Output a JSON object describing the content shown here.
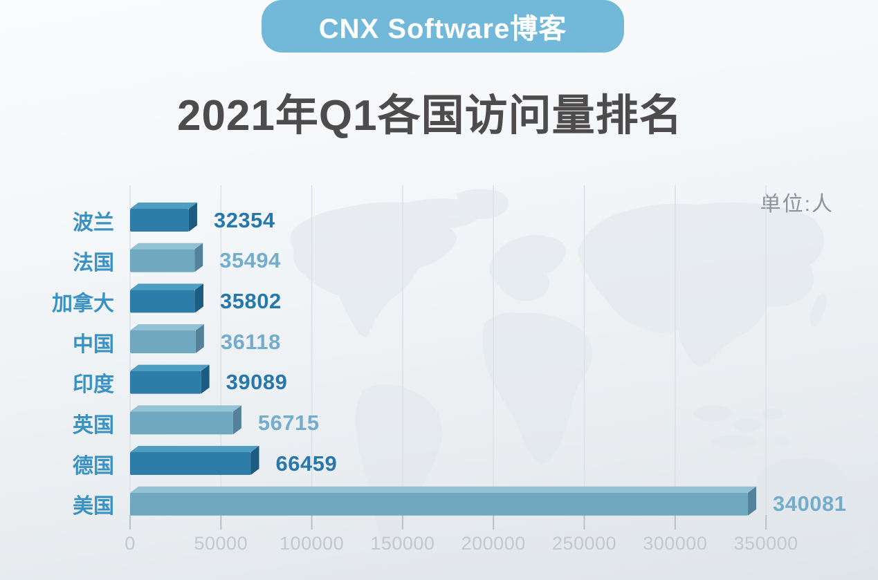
{
  "header": {
    "badge_label": "CNX Software博客",
    "badge_color": "#72B9D9",
    "badge_text_color": "#FFFFFF"
  },
  "title": {
    "text": "2021年Q1各国访问量排名",
    "color": "#4D4B4C"
  },
  "unit_label": {
    "text": "单位:人",
    "color": "#8C939B"
  },
  "watermark": {
    "name": "world-map",
    "color": "#E3E8ED"
  },
  "chart_data": {
    "type": "bar",
    "orientation": "horizontal",
    "title": "2021年Q1各国访问量排名",
    "unit": "单位:人",
    "categories": [
      "波兰",
      "法国",
      "加拿大",
      "中国",
      "印度",
      "英国",
      "德国",
      "美国"
    ],
    "values": [
      32354,
      35494,
      35802,
      36118,
      39089,
      56715,
      66459,
      340081
    ],
    "value_labels": [
      "32354",
      "35494",
      "35802",
      "36118",
      "39089",
      "56715",
      "66459",
      "340081"
    ],
    "xlabel": "",
    "ylabel": "",
    "xlim": [
      0,
      350000
    ],
    "x_ticks": [
      0,
      50000,
      100000,
      150000,
      200000,
      250000,
      300000,
      350000
    ],
    "x_tick_labels": [
      "0",
      "50000",
      "100000",
      "150000",
      "200000",
      "250000",
      "300000",
      "350000"
    ],
    "grid": true,
    "legend": false,
    "bar_style": "3d-extruded",
    "row_palette": [
      "dark",
      "light",
      "dark",
      "light",
      "dark",
      "light",
      "dark",
      "light"
    ],
    "colors": {
      "bar_dark_face": "#2E7DA8",
      "bar_dark_top": "#4E9EC2",
      "bar_dark_side": "#1C5C80",
      "bar_light_face": "#70A9BF",
      "bar_light_top": "#92C2D3",
      "bar_light_side": "#54829A",
      "value_label_dark": "#2677AB",
      "value_label_light": "#74ACCB",
      "category_label": "#3992C1",
      "axis_label": "#C2C8CF",
      "gridline": "#DBE0E6",
      "tick": "#B8C0C8"
    }
  }
}
